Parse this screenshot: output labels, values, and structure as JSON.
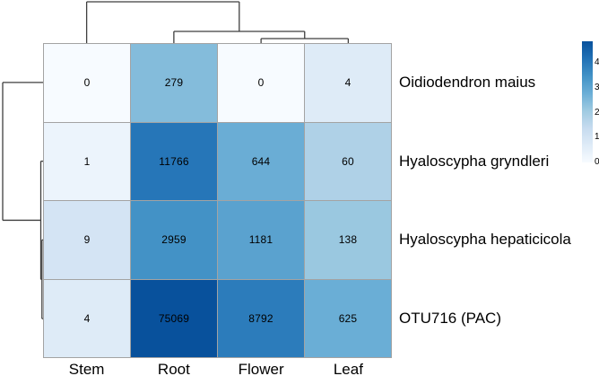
{
  "chart_data": {
    "type": "heatmap",
    "title": "",
    "columns": [
      "Stem",
      "Root",
      "Flower",
      "Leaf"
    ],
    "rows": [
      "Oidiodendron maius",
      "Hyaloscypha gryndleri",
      "Hyaloscypha hepaticicola",
      "OTU716 (PAC)"
    ],
    "values": [
      [
        0,
        279,
        0,
        4
      ],
      [
        1,
        11766,
        644,
        60
      ],
      [
        9,
        2959,
        1181,
        138
      ],
      [
        4,
        75069,
        8792,
        625
      ]
    ],
    "value_transform": "log10(value+1)",
    "palette": [
      "#f7fbff",
      "#deebf7",
      "#c6dbef",
      "#9ecae1",
      "#6baed6",
      "#4292c6",
      "#2171b5",
      "#08519c"
    ],
    "grid_line_color": "#a3a3a3",
    "dendrogram_line_color": "#3f3f3f",
    "legend": {
      "position": "right",
      "min": 0,
      "max": 4.88,
      "ticks": [
        4,
        3,
        2,
        1,
        0
      ]
    },
    "col_dendrogram": {
      "structure": "(Stem,(Root,(Flower,Leaf)))",
      "tree": {
        "h": 46,
        "children": [
          {
            "leaf": 0
          },
          {
            "h": 13,
            "children": [
              {
                "leaf": 1
              },
              {
                "h": 5,
                "children": [
                  {
                    "leaf": 2
                  },
                  {
                    "leaf": 3
                  }
                ]
              }
            ]
          }
        ]
      }
    },
    "row_dendrogram": {
      "structure": "(Oidiodendron maius,(Hyaloscypha gryndleri,(Hyaloscypha hepaticicola,OTU716 (PAC))))",
      "tree": {
        "h": 45,
        "children": [
          {
            "leaf": 0
          },
          {
            "h": 2.5,
            "children": [
              {
                "leaf": 1
              },
              {
                "h": 1.2,
                "children": [
                  {
                    "leaf": 2
                  },
                  {
                    "leaf": 3
                  }
                ]
              }
            ]
          }
        ]
      }
    }
  }
}
